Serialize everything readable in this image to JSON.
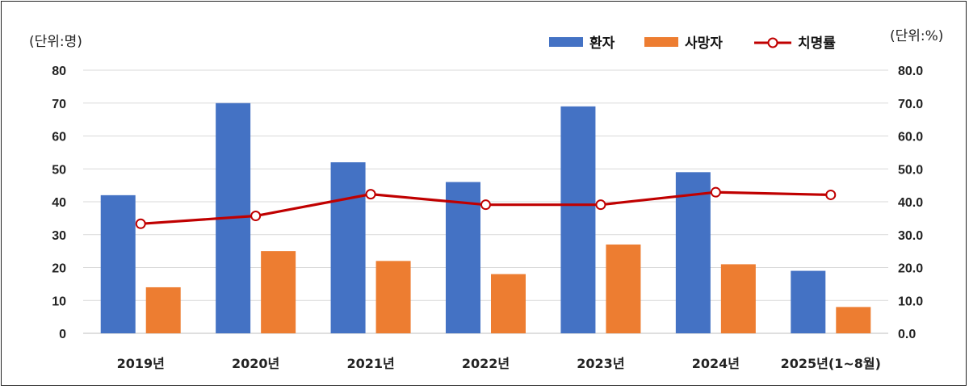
{
  "chart_data": {
    "type": "bar",
    "left_unit": "(단위:명)",
    "right_unit": "(단위:%)",
    "categories": [
      "2019년",
      "2020년",
      "2021년",
      "2022년",
      "2023년",
      "2024년",
      "2025년(1~8월)"
    ],
    "series": [
      {
        "name": "환자",
        "type": "bar",
        "axis": "left",
        "color": "#4472C4",
        "values": [
          42,
          70,
          52,
          46,
          69,
          49,
          19
        ]
      },
      {
        "name": "사망자",
        "type": "bar",
        "axis": "left",
        "color": "#ED7D31",
        "values": [
          14,
          25,
          22,
          18,
          27,
          21,
          8
        ]
      },
      {
        "name": "치명률",
        "type": "line",
        "axis": "right",
        "color": "#C00000",
        "values": [
          33.3,
          35.7,
          42.3,
          39.1,
          39.1,
          42.9,
          42.1
        ]
      }
    ],
    "ylim": [
      0,
      80
    ],
    "ylim_right": [
      0,
      80
    ],
    "yticks": [
      "0",
      "10",
      "20",
      "30",
      "40",
      "50",
      "60",
      "70",
      "80"
    ],
    "yticks_right": [
      "0.0",
      "10.0",
      "20.0",
      "30.0",
      "40.0",
      "50.0",
      "60.0",
      "70.0",
      "80.0"
    ],
    "grid": true,
    "legend": "top-right"
  }
}
